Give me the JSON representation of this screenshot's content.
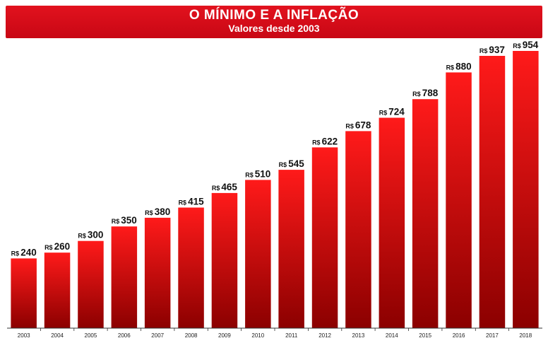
{
  "chart_data": {
    "type": "bar",
    "title": "O MÍNIMO E A INFLAÇÃO",
    "subtitle": "Valores desde 2003",
    "categories": [
      "2003",
      "2004",
      "2005",
      "2006",
      "2007",
      "2008",
      "2009",
      "2010",
      "2011",
      "2012",
      "2013",
      "2014",
      "2015",
      "2016",
      "2017",
      "2018"
    ],
    "values": [
      240,
      260,
      300,
      350,
      380,
      415,
      465,
      510,
      545,
      622,
      678,
      724,
      788,
      880,
      937,
      954
    ],
    "value_prefix": "R$",
    "ylim": [
      0,
      954
    ],
    "grid": false,
    "legend": "none",
    "colors": {
      "banner": "#d90c18",
      "bar_top": "#ff1a1a",
      "bar_bottom": "#8b0000"
    }
  }
}
